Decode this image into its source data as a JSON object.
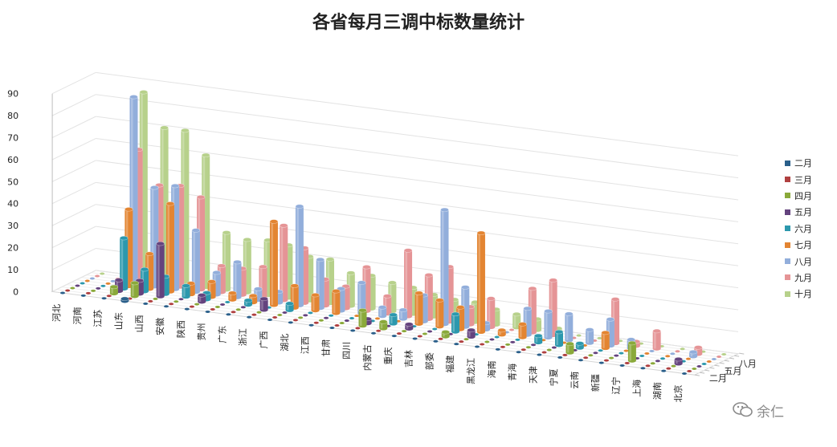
{
  "chart_data": {
    "type": "bar-3d",
    "title": "各省每月三调中标数量统计",
    "categories": [
      "河北",
      "河南",
      "江苏",
      "山东",
      "山西",
      "安徽",
      "陕西",
      "贵州",
      "广东",
      "浙江",
      "广西",
      "湖北",
      "江西",
      "甘肃",
      "四川",
      "内蒙古",
      "重庆",
      "吉林",
      "部委",
      "福建",
      "黑龙江",
      "海南",
      "青海",
      "天津",
      "宁夏",
      "云南",
      "新疆",
      "辽宁",
      "上海",
      "湖南",
      "北京"
    ],
    "depth_axis_labels": [
      "二月",
      "五月",
      "八月"
    ],
    "ylim": [
      0,
      90
    ],
    "yticks": [
      0,
      10,
      20,
      30,
      40,
      50,
      60,
      70,
      80,
      90
    ],
    "legend_position": "right",
    "series": [
      {
        "name": "二月",
        "color": "#2a5f8a",
        "values": [
          0,
          0,
          0,
          1,
          0,
          0,
          0,
          0,
          0,
          0,
          0,
          0,
          0,
          0,
          0,
          0,
          0,
          0,
          0,
          0,
          0,
          0,
          0,
          0,
          0,
          0,
          0,
          0,
          0,
          0,
          0
        ]
      },
      {
        "name": "三月",
        "color": "#b04040",
        "values": [
          0,
          0,
          0,
          0,
          0,
          0,
          0,
          0,
          0,
          0,
          0,
          0,
          0,
          0,
          0,
          0,
          0,
          0,
          0,
          0,
          0,
          0,
          0,
          0,
          0,
          0,
          0,
          0,
          0,
          0,
          0
        ]
      },
      {
        "name": "四月",
        "color": "#8aa93a",
        "values": [
          0,
          0,
          3,
          6,
          0,
          0,
          0,
          0,
          0,
          0,
          0,
          0,
          0,
          0,
          7,
          3,
          0,
          0,
          2,
          0,
          0,
          0,
          0,
          0,
          4,
          0,
          0,
          8,
          0,
          0,
          0
        ]
      },
      {
        "name": "五月",
        "color": "#64437e",
        "values": [
          0,
          0,
          5,
          6,
          24,
          0,
          3,
          0,
          0,
          5,
          0,
          0,
          0,
          0,
          2,
          0,
          2,
          0,
          0,
          3,
          0,
          0,
          0,
          0,
          0,
          0,
          0,
          0,
          0,
          2,
          0
        ]
      },
      {
        "name": "六月",
        "color": "#2c98ad",
        "values": [
          0,
          0,
          23,
          10,
          8,
          5,
          3,
          0,
          2,
          0,
          3,
          0,
          0,
          0,
          0,
          4,
          0,
          0,
          8,
          0,
          0,
          0,
          3,
          6,
          2,
          0,
          0,
          0,
          0,
          0,
          0
        ]
      },
      {
        "name": "七月",
        "color": "#e38532",
        "values": [
          0,
          0,
          35,
          16,
          40,
          5,
          7,
          3,
          3,
          38,
          10,
          7,
          10,
          0,
          0,
          0,
          14,
          12,
          10,
          45,
          2,
          6,
          0,
          0,
          0,
          7,
          0,
          0,
          0,
          0,
          0
        ]
      },
      {
        "name": "八月",
        "color": "#92aedb",
        "values": [
          0,
          0,
          85,
          45,
          47,
          28,
          10,
          16,
          5,
          5,
          45,
          22,
          10,
          14,
          4,
          4,
          12,
          52,
          18,
          3,
          0,
          12,
          12,
          12,
          6,
          12,
          4,
          0,
          0,
          2,
          0
        ]
      },
      {
        "name": "九月",
        "color": "#e59496",
        "values": [
          0,
          0,
          60,
          45,
          46,
          42,
          12,
          12,
          14,
          34,
          25,
          12,
          10,
          20,
          8,
          30,
          20,
          25,
          8,
          13,
          0,
          20,
          25,
          0,
          0,
          20,
          2,
          8,
          0,
          3,
          0
        ]
      },
      {
        "name": "十月",
        "color": "#b7d18b",
        "values": [
          0,
          0,
          85,
          70,
          70,
          60,
          26,
          24,
          25,
          24,
          20,
          20,
          15,
          15,
          13,
          12,
          10,
          9,
          9,
          7,
          6,
          5,
          2,
          0,
          0,
          0,
          0,
          0,
          0,
          0,
          0
        ]
      }
    ]
  }
}
